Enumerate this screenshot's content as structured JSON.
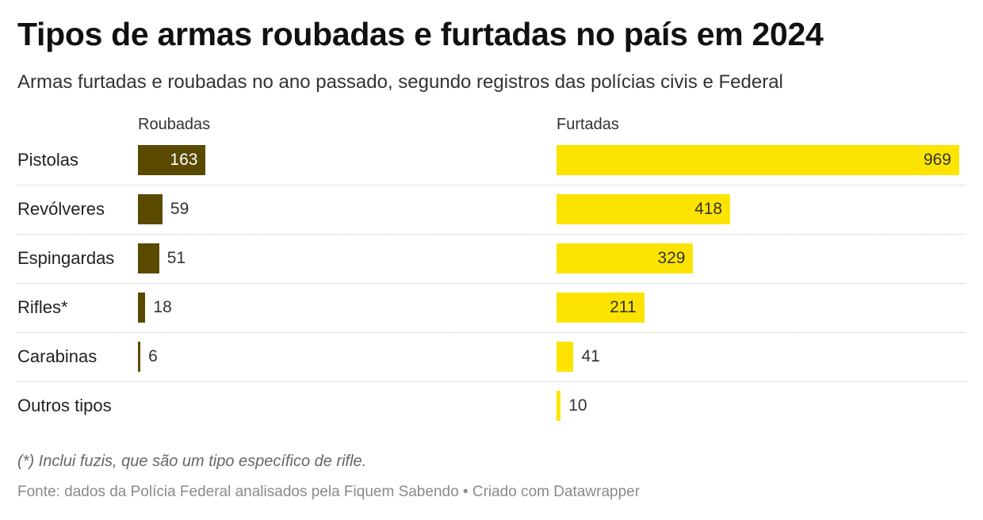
{
  "title": "Tipos de armas roubadas e furtadas no país em 2024",
  "subtitle": "Armas furtadas e roubadas no ano passado, segundo registros das polícias civis e Federal",
  "colors": {
    "roubadas": "#594a00",
    "furtadas": "#fde400"
  },
  "chart_data": {
    "type": "bar",
    "orientation": "horizontal",
    "categories": [
      "Pistolas",
      "Revólveres",
      "Espingardas",
      "Rifles*",
      "Carabinas",
      "Outros tipos"
    ],
    "series": [
      {
        "name": "Roubadas",
        "values": [
          163,
          59,
          51,
          18,
          6,
          null
        ]
      },
      {
        "name": "Furtadas",
        "values": [
          969,
          418,
          329,
          211,
          41,
          10
        ]
      }
    ],
    "xlim": [
      0,
      969
    ]
  },
  "note": "(*) Inclui fuzis, que são um tipo específico de rifle.",
  "source": "Fonte: dados da Polícia Federal analisados pela Fiquem Sabendo • Criado com Datawrapper"
}
